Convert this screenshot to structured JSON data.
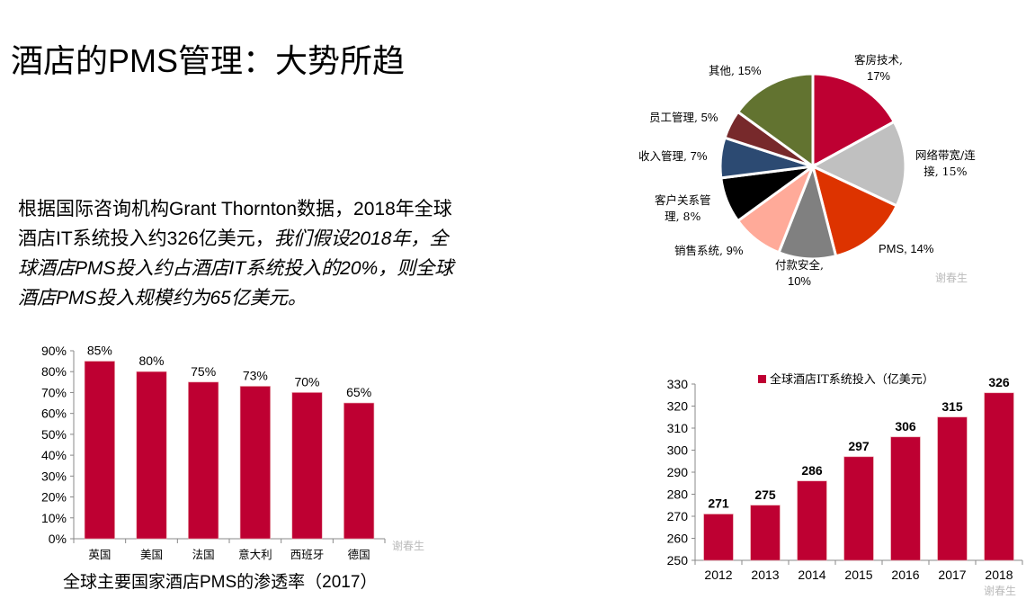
{
  "title": "酒店的PMS管理：大势所趋",
  "paragraph": {
    "line1": "根据国际咨询机构Grant Thornton数据，2018年全球",
    "line2_normal": "酒店IT系统投入约326亿美元，",
    "line2_italic": "我们假设2018年，全",
    "line3": "球酒店PMS投入约占酒店IT系统投入的20%，则全球",
    "line4": "酒店PMS投入规模约为65亿美元。"
  },
  "watermark": "谢春生",
  "chart_data": [
    {
      "type": "pie",
      "title": "",
      "slices": [
        {
          "label": "客房技术,",
          "value_label": "17%",
          "value": 17,
          "color": "#BE0032"
        },
        {
          "label": "网络带宽/连",
          "value_label": "接, 15%",
          "value": 15,
          "color": "#C0C0C0"
        },
        {
          "label": "PMS, 14%",
          "value_label": "",
          "value": 14,
          "color": "#DD3300"
        },
        {
          "label": "付款安全,",
          "value_label": "10%",
          "value": 10,
          "color": "#808080"
        },
        {
          "label": "销售系统,",
          "value_label": " 9%",
          "value": 9,
          "color": "#FFAA99"
        },
        {
          "label": "客户关系管",
          "value_label": "理, 8%",
          "value": 8,
          "color": "#000000"
        },
        {
          "label": "收入管理,",
          "value_label": " 7%",
          "value": 7,
          "color": "#2C4A72"
        },
        {
          "label": "员工管理,",
          "value_label": " 5%",
          "value": 5,
          "color": "#77292B"
        },
        {
          "label": "其他,",
          "value_label": " 15%",
          "value": 15,
          "color": "#627330"
        }
      ]
    },
    {
      "type": "bar",
      "title": "全球主要国家酒店PMS的渗透率（2017）",
      "categories": [
        "英国",
        "美国",
        "法国",
        "意大利",
        "西班牙",
        "德国"
      ],
      "values": [
        85,
        80,
        75,
        73,
        70,
        65
      ],
      "data_labels": [
        "85%",
        "80%",
        "75%",
        "73%",
        "70%",
        "65%"
      ],
      "ylim": [
        0,
        90
      ],
      "yticks": [
        "0%",
        "10%",
        "20%",
        "30%",
        "40%",
        "50%",
        "60%",
        "70%",
        "80%",
        "90%"
      ],
      "color": "#BE0032"
    },
    {
      "type": "bar",
      "title": "",
      "legend": "全球酒店IT系统投入（亿美元）",
      "legend_placement": "top",
      "categories": [
        "2012",
        "2013",
        "2014",
        "2015",
        "2016",
        "2017",
        "2018"
      ],
      "values": [
        271,
        275,
        286,
        297,
        306,
        315,
        326
      ],
      "data_labels": [
        "271",
        "275",
        "286",
        "297",
        "306",
        "315",
        "326"
      ],
      "ylim": [
        250,
        330
      ],
      "yticks": [
        "250",
        "260",
        "270",
        "280",
        "290",
        "300",
        "310",
        "320",
        "330"
      ],
      "color": "#BE0032"
    }
  ]
}
